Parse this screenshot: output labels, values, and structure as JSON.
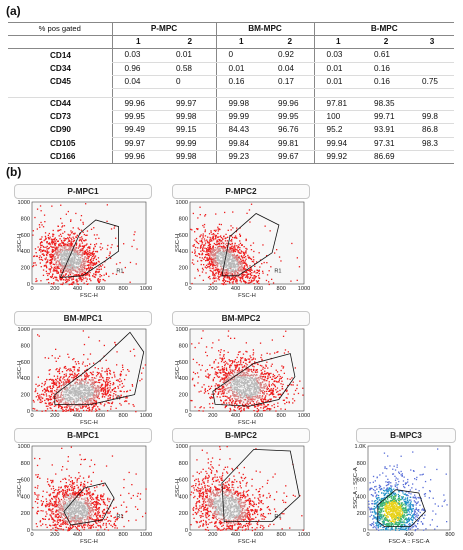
{
  "panel_a_letter": "(a)",
  "panel_b_letter": "(b)",
  "table": {
    "corner_label": "% pos gated",
    "groups": [
      "P-MPC",
      "BM-MPC",
      "B-MPC"
    ],
    "subheaders": [
      "1",
      "2",
      "1",
      "2",
      "1",
      "2",
      "3"
    ],
    "rows": [
      {
        "label": "CD14",
        "values": [
          "0.03",
          "0.01",
          "0",
          "0.92",
          "0.03",
          "0.61",
          ""
        ]
      },
      {
        "label": "CD34",
        "values": [
          "0.96",
          "0.58",
          "0.01",
          "0.04",
          "0.01",
          "0.16",
          ""
        ]
      },
      {
        "label": "CD45",
        "values": [
          "0.04",
          "0",
          "0.16",
          "0.17",
          "0.01",
          "0.16",
          "0.75"
        ]
      },
      {
        "label": "CD44",
        "values": [
          "99.96",
          "99.97",
          "99.98",
          "99.96",
          "97.81",
          "98.35",
          ""
        ]
      },
      {
        "label": "CD73",
        "values": [
          "99.95",
          "99.98",
          "99.99",
          "99.95",
          "100",
          "99.71",
          "99.8"
        ]
      },
      {
        "label": "CD90",
        "values": [
          "99.49",
          "99.15",
          "84.43",
          "96.76",
          "95.2",
          "93.91",
          "86.8"
        ]
      },
      {
        "label": "CD105",
        "values": [
          "99.97",
          "99.99",
          "99.84",
          "99.81",
          "99.94",
          "97.31",
          "98.3"
        ]
      },
      {
        "label": "CD166",
        "values": [
          "99.96",
          "99.98",
          "99.23",
          "99.67",
          "99.92",
          "86.69",
          ""
        ]
      }
    ]
  },
  "plots": [
    {
      "title": "P-MPC1",
      "gate_label": "R1",
      "xlabel": "FSC-H",
      "ylabel": "SSC-H",
      "xticks": [
        "0",
        "200",
        "400",
        "600",
        "800",
        "1000"
      ],
      "yticks": [
        "0",
        "200",
        "400",
        "600",
        "800",
        "1000"
      ]
    },
    {
      "title": "P-MPC2",
      "gate_label": "R1",
      "xlabel": "FSC-H",
      "ylabel": "SSC-H",
      "xticks": [
        "0",
        "200",
        "400",
        "600",
        "800",
        "1000"
      ],
      "yticks": [
        "0",
        "200",
        "400",
        "600",
        "800",
        "1000"
      ]
    },
    {
      "title": "BM-MPC1",
      "gate_label": "R",
      "xlabel": "FSC-H",
      "ylabel": "SSC-H",
      "xticks": [
        "0",
        "200",
        "400",
        "600",
        "800",
        "1000"
      ],
      "yticks": [
        "0",
        "200",
        "400",
        "600",
        "800",
        "1000"
      ]
    },
    {
      "title": "BM-MPC2",
      "gate_label": "",
      "xlabel": "FSC-H",
      "ylabel": "SSC-H",
      "xticks": [
        "0",
        "200",
        "400",
        "600",
        "800",
        "1000"
      ],
      "yticks": [
        "0",
        "200",
        "400",
        "600",
        "800",
        "1000"
      ]
    },
    {
      "title": "B-MPC1",
      "gate_label": "R1",
      "xlabel": "FSC-H",
      "ylabel": "SSC-H",
      "xticks": [
        "0",
        "200",
        "400",
        "600",
        "800",
        "1000"
      ],
      "yticks": [
        "0",
        "200",
        "400",
        "600",
        "800",
        "1000"
      ]
    },
    {
      "title": "B-MPC2",
      "gate_label": "R1",
      "xlabel": "FSC-H",
      "ylabel": "SSC-H",
      "xticks": [
        "0",
        "200",
        "400",
        "600",
        "800",
        "1000"
      ],
      "yticks": [
        "0",
        "200",
        "400",
        "600",
        "800",
        "1000"
      ]
    },
    {
      "title": "B-MPC3",
      "gate_label": "",
      "xlabel": "FSC-A :: FSC-A",
      "ylabel": "SSC-A :: SSC-A",
      "xticks": [
        "0",
        "400",
        "800"
      ],
      "yticks": [
        "0",
        "200",
        "400",
        "600",
        "800",
        "1.0K"
      ]
    }
  ]
}
